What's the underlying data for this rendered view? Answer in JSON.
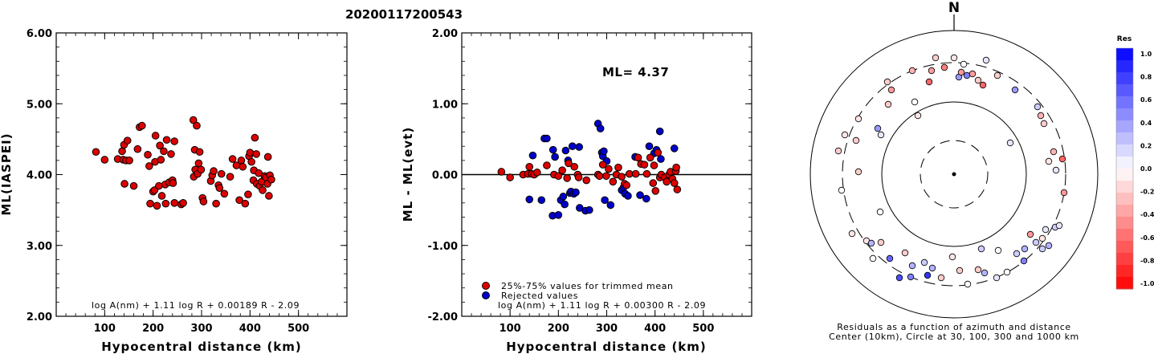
{
  "title": "20200117200543",
  "colors": {
    "red": "#dd0000",
    "blue": "#0000cc",
    "axis": "#000000"
  },
  "chart_data": [
    {
      "type": "scatter",
      "xlabel": "Hypocentral distance (km)",
      "ylabel": "ML(IASPEI)",
      "xlim": [
        0,
        600
      ],
      "ylim": [
        2.0,
        6.0
      ],
      "xticks": [
        "100",
        "200",
        "300",
        "400",
        "500"
      ],
      "yticks": [
        "2.00",
        "3.00",
        "4.00",
        "5.00",
        "6.00"
      ],
      "formula": "log A(nm) + 1.11 log R + 0.00189 R - 2.09",
      "points": [
        [
          82,
          4.32
        ],
        [
          100,
          4.21
        ],
        [
          127,
          4.22
        ],
        [
          136,
          4.33
        ],
        [
          138,
          4.21
        ],
        [
          140,
          4.42
        ],
        [
          144,
          4.2
        ],
        [
          147,
          4.48
        ],
        [
          151,
          4.2
        ],
        [
          141,
          3.87
        ],
        [
          160,
          3.84
        ],
        [
          168,
          4.36
        ],
        [
          172,
          4.67
        ],
        [
          177,
          4.69
        ],
        [
          189,
          4.28
        ],
        [
          192,
          4.12
        ],
        [
          194,
          3.59
        ],
        [
          200,
          3.76
        ],
        [
          203,
          3.78
        ],
        [
          205,
          4.55
        ],
        [
          204,
          4.18
        ],
        [
          208,
          3.56
        ],
        [
          212,
          3.84
        ],
        [
          214,
          4.41
        ],
        [
          216,
          4.21
        ],
        [
          218,
          3.7
        ],
        [
          222,
          4.33
        ],
        [
          225,
          3.86
        ],
        [
          226,
          3.59
        ],
        [
          228,
          4.49
        ],
        [
          233,
          3.89
        ],
        [
          237,
          4.29
        ],
        [
          240,
          3.92
        ],
        [
          241,
          3.88
        ],
        [
          244,
          3.6
        ],
        [
          244,
          4.47
        ],
        [
          258,
          3.58
        ],
        [
          262,
          3.6
        ],
        [
          283,
          4.77
        ],
        [
          284,
          3.97
        ],
        [
          286,
          4.35
        ],
        [
          287,
          4.07
        ],
        [
          290,
          4.69
        ],
        [
          292,
          4.01
        ],
        [
          294,
          4.16
        ],
        [
          296,
          4.32
        ],
        [
          299,
          4.07
        ],
        [
          302,
          3.67
        ],
        [
          304,
          3.62
        ],
        [
          319,
          3.91
        ],
        [
          322,
          3.99
        ],
        [
          325,
          4.05
        ],
        [
          330,
          3.59
        ],
        [
          335,
          3.85
        ],
        [
          337,
          3.81
        ],
        [
          341,
          4.01
        ],
        [
          347,
          3.73
        ],
        [
          359,
          3.97
        ],
        [
          364,
          4.22
        ],
        [
          372,
          4.13
        ],
        [
          378,
          3.64
        ],
        [
          382,
          4.2
        ],
        [
          385,
          4.11
        ],
        [
          390,
          3.59
        ],
        [
          396,
          3.72
        ],
        [
          398,
          4.26
        ],
        [
          400,
          4.31
        ],
        [
          403,
          4.18
        ],
        [
          407,
          3.92
        ],
        [
          408,
          4.06
        ],
        [
          410,
          4.52
        ],
        [
          413,
          4.29
        ],
        [
          414,
          3.87
        ],
        [
          418,
          4.02
        ],
        [
          420,
          3.84
        ],
        [
          424,
          3.9
        ],
        [
          426,
          3.78
        ],
        [
          430,
          3.98
        ],
        [
          433,
          3.96
        ],
        [
          436,
          3.87
        ],
        [
          437,
          4.25
        ],
        [
          439,
          3.7
        ],
        [
          441,
          3.99
        ],
        [
          444,
          3.93
        ]
      ]
    },
    {
      "type": "scatter",
      "xlabel": "Hypocentral distance (km)",
      "ylabel": "ML - ML(evt)",
      "xlim": [
        0,
        600
      ],
      "ylim": [
        -2.0,
        2.0
      ],
      "xticks": [
        "100",
        "200",
        "300",
        "400",
        "500"
      ],
      "yticks": [
        "-2.00",
        "-1.00",
        "0.00",
        "1.00",
        "2.00"
      ],
      "reference_line": 0.0,
      "ml_label": "ML= 4.37",
      "formula": "log A(nm) + 1.11 log R + 0.00300 R - 2.09",
      "legend": [
        "25%-75% values for trimmed mean",
        "Rejected values"
      ],
      "legend_position": "bottom-left",
      "trimmed": [
        [
          82,
          0.04
        ],
        [
          100,
          -0.04
        ],
        [
          127,
          0.0
        ],
        [
          137,
          0.01
        ],
        [
          140,
          0.11
        ],
        [
          145,
          0.01
        ],
        [
          150,
          0.0
        ],
        [
          156,
          0.03
        ],
        [
          176,
          0.13
        ],
        [
          191,
          0.0
        ],
        [
          200,
          -0.02
        ],
        [
          208,
          0.06
        ],
        [
          218,
          -0.05
        ],
        [
          221,
          0.16
        ],
        [
          233,
          0.11
        ],
        [
          240,
          0.0
        ],
        [
          242,
          -0.04
        ],
        [
          258,
          -0.08
        ],
        [
          282,
          0.0
        ],
        [
          285,
          -0.02
        ],
        [
          292,
          0.14
        ],
        [
          299,
          -0.02
        ],
        [
          304,
          0.08
        ],
        [
          313,
          -0.1
        ],
        [
          320,
          0.0
        ],
        [
          324,
          0.1
        ],
        [
          331,
          -0.03
        ],
        [
          337,
          -0.13
        ],
        [
          341,
          -0.15
        ],
        [
          347,
          0.01
        ],
        [
          360,
          0.01
        ],
        [
          365,
          0.24
        ],
        [
          371,
          0.15
        ],
        [
          378,
          0.14
        ],
        [
          383,
          0.01
        ],
        [
          390,
          0.24
        ],
        [
          396,
          -0.12
        ],
        [
          398,
          0.13
        ],
        [
          401,
          -0.23
        ],
        [
          406,
          0.31
        ],
        [
          410,
          -0.04
        ],
        [
          413,
          0.0
        ],
        [
          420,
          -0.04
        ],
        [
          424,
          -0.1
        ],
        [
          429,
          0.0
        ],
        [
          432,
          0.04
        ],
        [
          436,
          -0.06
        ],
        [
          440,
          -0.12
        ],
        [
          443,
          0.05
        ],
        [
          444,
          0.1
        ],
        [
          446,
          -0.21
        ]
      ],
      "rejected": [
        [
          140,
          -0.35
        ],
        [
          147,
          0.27
        ],
        [
          165,
          -0.36
        ],
        [
          171,
          0.51
        ],
        [
          176,
          0.51
        ],
        [
          188,
          -0.58
        ],
        [
          189,
          0.35
        ],
        [
          193,
          0.25
        ],
        [
          200,
          -0.57
        ],
        [
          205,
          -0.36
        ],
        [
          210,
          -0.31
        ],
        [
          213,
          -0.42
        ],
        [
          215,
          0.34
        ],
        [
          220,
          0.2
        ],
        [
          224,
          -0.26
        ],
        [
          226,
          -0.24
        ],
        [
          229,
          0.4
        ],
        [
          232,
          -0.27
        ],
        [
          236,
          -0.25
        ],
        [
          243,
          0.39
        ],
        [
          244,
          -0.47
        ],
        [
          256,
          -0.51
        ],
        [
          264,
          -0.5
        ],
        [
          282,
          0.72
        ],
        [
          287,
          0.65
        ],
        [
          290,
          0.31
        ],
        [
          292,
          0.26
        ],
        [
          294,
          0.33
        ],
        [
          296,
          -0.36
        ],
        [
          300,
          0.19
        ],
        [
          308,
          -0.43
        ],
        [
          331,
          -0.22
        ],
        [
          335,
          -0.18
        ],
        [
          338,
          -0.27
        ],
        [
          344,
          -0.3
        ],
        [
          359,
          0.25
        ],
        [
          369,
          -0.29
        ],
        [
          382,
          -0.34
        ],
        [
          388,
          0.4
        ],
        [
          398,
          0.3
        ],
        [
          403,
          0.35
        ],
        [
          410,
          0.61
        ],
        [
          412,
          0.22
        ],
        [
          440,
          0.37
        ]
      ]
    },
    {
      "type": "scatter",
      "north_label": "N",
      "caption": [
        "Residuals as a function of azimuth and distance",
        "Center (10km), Circle at 30, 100, 300 and 1000 km"
      ],
      "colorbar_title": "Res",
      "colorbar_labels": [
        "1.0",
        "0.8",
        "0.6",
        "0.4",
        "0.2",
        "0.0",
        "-0.2",
        "-0.4",
        "-0.6",
        "-0.8",
        "-1.0"
      ],
      "stations": [
        [
          1165,
          72,
          -0.2
        ],
        [
          1188,
          72,
          -0.1
        ],
        [
          1200,
          80,
          0.0
        ],
        [
          1228,
          75,
          0.1
        ],
        [
          1136,
          88,
          -0.3
        ],
        [
          1160,
          88,
          -0.4
        ],
        [
          1176,
          84,
          -0.5
        ],
        [
          1194,
          96,
          0.4
        ],
        [
          1197,
          90,
          -0.4
        ],
        [
          1204,
          94,
          0.5
        ],
        [
          1211,
          92,
          -0.4
        ],
        [
          1218,
          100,
          -0.2
        ],
        [
          1224,
          106,
          -0.6
        ],
        [
          1242,
          94,
          -0.2
        ],
        [
          1105,
          102,
          -0.2
        ],
        [
          1157,
          102,
          -0.6
        ],
        [
          1264,
          112,
          0.4
        ],
        [
          1110,
          112,
          -0.4
        ],
        [
          1106,
          130,
          -0.2
        ],
        [
          1139,
          127,
          0.0
        ],
        [
          1292,
          133,
          0.2
        ],
        [
          1296,
          144,
          -0.3
        ],
        [
          1300,
          154,
          -0.2
        ],
        [
          1069,
          148,
          -0.1
        ],
        [
          1093,
          160,
          0.4
        ],
        [
          1097,
          168,
          0.1
        ],
        [
          1052,
          168,
          -0.1
        ],
        [
          1143,
          144,
          -0.1
        ],
        [
          1066,
          175,
          -0.2
        ],
        [
          1258,
          178,
          0.1
        ],
        [
          1044,
          188,
          -0.2
        ],
        [
          1312,
          189,
          -0.3
        ],
        [
          1306,
          201,
          -0.1
        ],
        [
          1323,
          198,
          -0.6
        ],
        [
          1315,
          212,
          0.1
        ],
        [
          1069,
          214,
          -0.2
        ],
        [
          1325,
          240,
          -0.4
        ],
        [
          1048,
          237,
          0.0
        ],
        [
          1096,
          264,
          0.0
        ],
        [
          1314,
          283,
          0.2
        ],
        [
          1319,
          281,
          0.1
        ],
        [
          1061,
          291,
          -0.1
        ],
        [
          1302,
          286,
          0.1
        ],
        [
          1283,
          292,
          -0.4
        ],
        [
          1079,
          300,
          -0.1
        ],
        [
          1290,
          302,
          0.2
        ],
        [
          1306,
          306,
          0.3
        ],
        [
          1085,
          303,
          0.3
        ],
        [
          1097,
          302,
          -0.2
        ],
        [
          1298,
          310,
          0.2
        ],
        [
          1276,
          310,
          0.3
        ],
        [
          1298,
          297,
          -0.1
        ],
        [
          1087,
          322,
          0.0
        ],
        [
          1108,
          322,
          0.6
        ],
        [
          1127,
          315,
          -0.2
        ],
        [
          1151,
          327,
          0.2
        ],
        [
          1136,
          331,
          0.3
        ],
        [
          1186,
          320,
          -0.1
        ],
        [
          1222,
          310,
          0.2
        ],
        [
          1243,
          312,
          0.0
        ],
        [
          1266,
          316,
          0.2
        ],
        [
          1275,
          325,
          0.5
        ],
        [
          1161,
          334,
          0.3
        ],
        [
          1218,
          336,
          -0.2
        ],
        [
          1195,
          337,
          -0.2
        ],
        [
          1226,
          340,
          0.3
        ],
        [
          1254,
          339,
          0.0
        ],
        [
          1120,
          346,
          0.7
        ],
        [
          1134,
          345,
          0.5
        ],
        [
          1155,
          343,
          0.8
        ],
        [
          1172,
          346,
          -0.2
        ],
        [
          1205,
          354,
          0.0
        ],
        [
          1241,
          346,
          0.1
        ]
      ]
    }
  ]
}
